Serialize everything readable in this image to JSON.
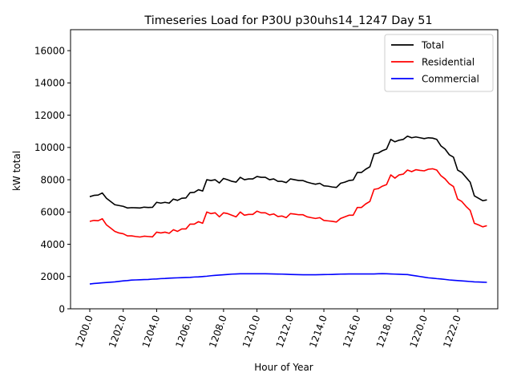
{
  "chart_data": {
    "type": "line",
    "title": "Timeseries Load for P30U p30uhs14_1247  Day 51",
    "xlabel": "Hour of Year",
    "ylabel": "kW total",
    "xlim": [
      1198.85,
      1224.4
    ],
    "ylim": [
      0,
      17300
    ],
    "x_start": 1200.0,
    "x_step": 0.25,
    "xticks": [
      1200,
      1202,
      1204,
      1206,
      1208,
      1210,
      1212,
      1214,
      1216,
      1218,
      1220,
      1222
    ],
    "xtick_labels": [
      "1200.0",
      "1202.0",
      "1204.0",
      "1206.0",
      "1208.0",
      "1210.0",
      "1212.0",
      "1214.0",
      "1216.0",
      "1218.0",
      "1220.0",
      "1222.0"
    ],
    "yticks": [
      0,
      2000,
      4000,
      6000,
      8000,
      10000,
      12000,
      14000,
      16000
    ],
    "ytick_labels": [
      "0",
      "2000",
      "4000",
      "6000",
      "8000",
      "10000",
      "12000",
      "14000",
      "16000"
    ],
    "grid": false,
    "legend_position": "top-right",
    "series": [
      {
        "name": "Total",
        "color": "#000000",
        "values": [
          6950,
          7030,
          7050,
          7180,
          6850,
          6650,
          6450,
          6400,
          6350,
          6250,
          6270,
          6260,
          6250,
          6300,
          6280,
          6290,
          6600,
          6550,
          6600,
          6550,
          6800,
          6720,
          6850,
          6870,
          7200,
          7220,
          7380,
          7300,
          8000,
          7950,
          8000,
          7800,
          8080,
          8000,
          7900,
          7850,
          8150,
          8000,
          8050,
          8050,
          8200,
          8150,
          8150,
          8000,
          8050,
          7900,
          7900,
          7820,
          8050,
          8000,
          7950,
          7950,
          7850,
          7780,
          7720,
          7780,
          7620,
          7600,
          7550,
          7520,
          7780,
          7850,
          7950,
          7980,
          8450,
          8450,
          8650,
          8800,
          9600,
          9650,
          9800,
          9900,
          10500,
          10350,
          10450,
          10500,
          10700,
          10600,
          10650,
          10600,
          10550,
          10600,
          10580,
          10500,
          10100,
          9900,
          9550,
          9400,
          8600,
          8450,
          8150,
          7850,
          7000,
          6850,
          6700,
          6750
        ]
      },
      {
        "name": "Residential",
        "color": "#ff0000",
        "values": [
          5420,
          5480,
          5460,
          5580,
          5200,
          5000,
          4800,
          4700,
          4650,
          4520,
          4520,
          4480,
          4450,
          4500,
          4480,
          4460,
          4750,
          4700,
          4750,
          4680,
          4900,
          4800,
          4950,
          4950,
          5250,
          5250,
          5400,
          5300,
          6000,
          5900,
          5950,
          5700,
          5950,
          5900,
          5800,
          5700,
          6000,
          5800,
          5850,
          5850,
          6050,
          5950,
          5950,
          5820,
          5880,
          5720,
          5750,
          5650,
          5900,
          5870,
          5830,
          5830,
          5700,
          5650,
          5600,
          5650,
          5480,
          5450,
          5420,
          5380,
          5600,
          5700,
          5800,
          5800,
          6280,
          6280,
          6500,
          6650,
          7400,
          7450,
          7600,
          7700,
          8300,
          8100,
          8300,
          8350,
          8600,
          8500,
          8620,
          8580,
          8550,
          8650,
          8680,
          8600,
          8250,
          8050,
          7750,
          7580,
          6800,
          6650,
          6350,
          6100,
          5300,
          5200,
          5080,
          5150
        ]
      },
      {
        "name": "Commercial",
        "color": "#0000ff",
        "values": [
          1540,
          1570,
          1590,
          1610,
          1630,
          1650,
          1670,
          1700,
          1730,
          1750,
          1780,
          1790,
          1800,
          1810,
          1820,
          1840,
          1850,
          1870,
          1880,
          1900,
          1910,
          1920,
          1930,
          1940,
          1950,
          1970,
          1980,
          2000,
          2020,
          2050,
          2070,
          2090,
          2110,
          2130,
          2150,
          2160,
          2170,
          2170,
          2170,
          2170,
          2170,
          2170,
          2170,
          2165,
          2160,
          2155,
          2150,
          2140,
          2130,
          2120,
          2115,
          2110,
          2110,
          2110,
          2110,
          2115,
          2120,
          2125,
          2130,
          2140,
          2150,
          2155,
          2160,
          2160,
          2160,
          2160,
          2160,
          2160,
          2160,
          2170,
          2180,
          2170,
          2160,
          2150,
          2140,
          2130,
          2120,
          2080,
          2040,
          2000,
          1960,
          1920,
          1900,
          1870,
          1850,
          1820,
          1790,
          1770,
          1750,
          1730,
          1710,
          1690,
          1670,
          1660,
          1650,
          1640
        ]
      }
    ]
  }
}
